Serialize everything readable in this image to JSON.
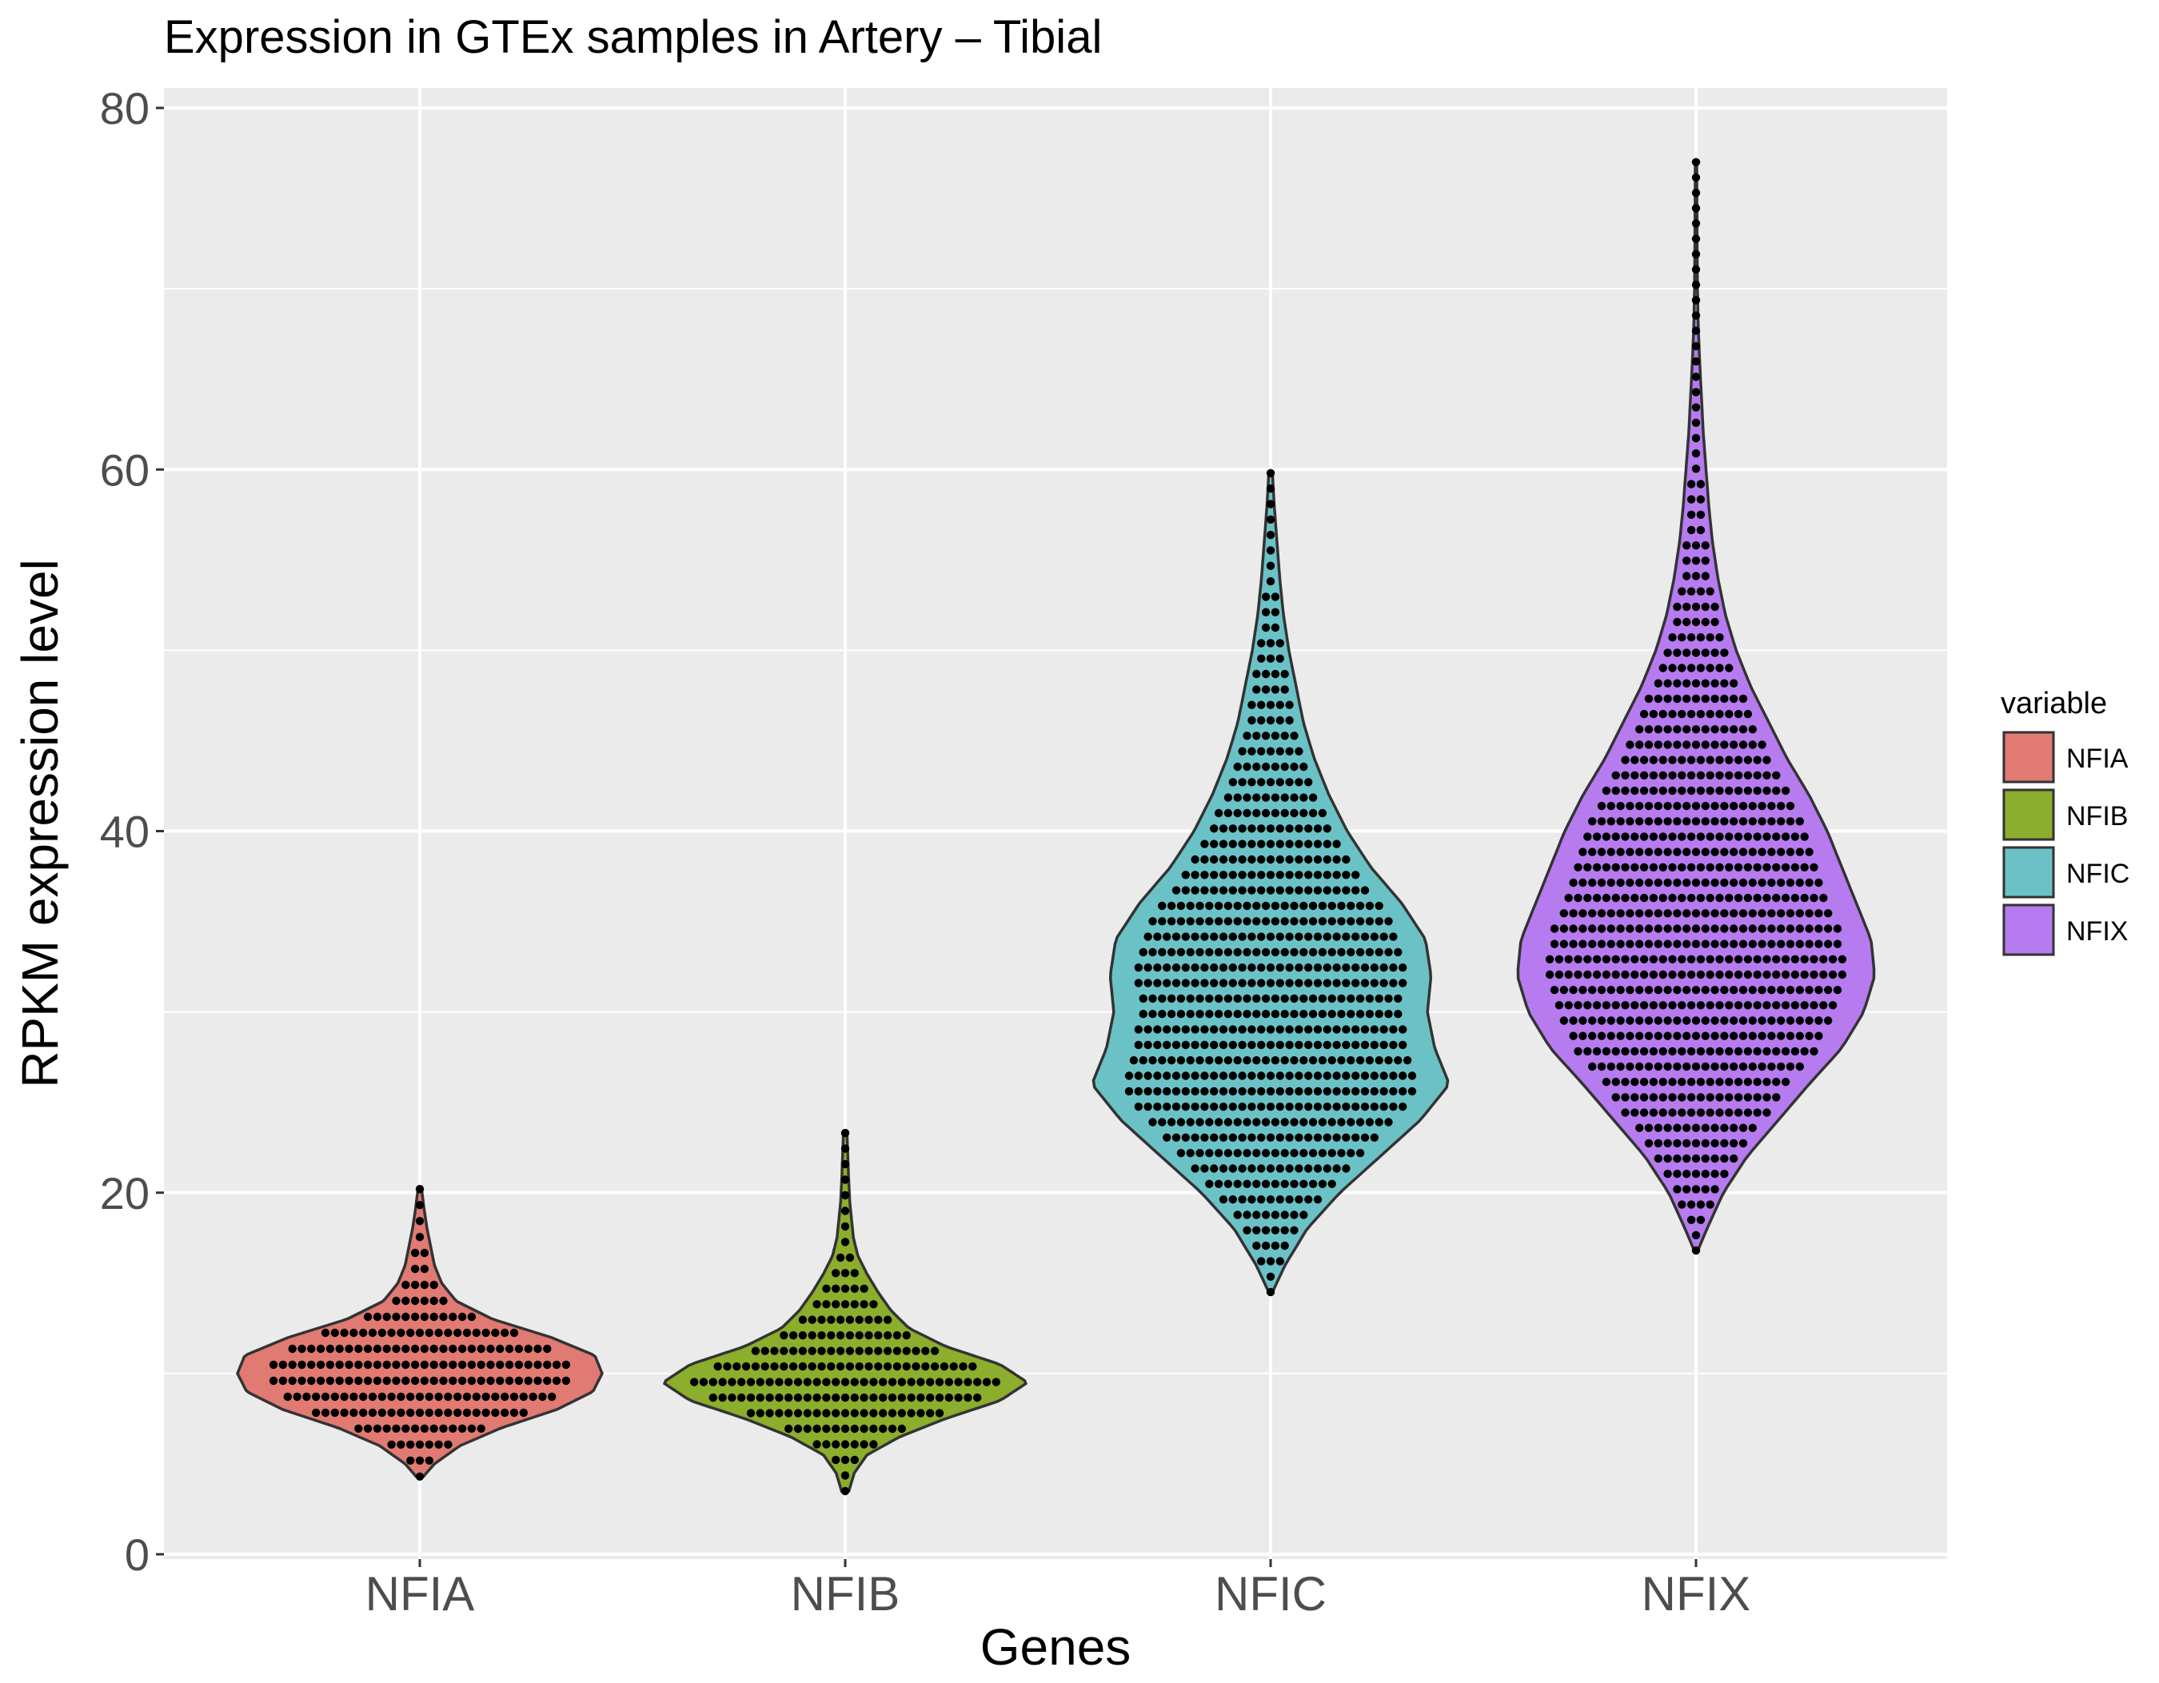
{
  "chart_data": {
    "type": "violin",
    "title": "Expression in GTEx samples in Artery – Tibial",
    "xlabel": "Genes",
    "ylabel": "RPKM expression level",
    "ylim": [
      0,
      80
    ],
    "y_ticks": [
      0,
      20,
      40,
      60,
      80
    ],
    "grid": true,
    "legend_position": "right",
    "legend_title": "variable",
    "categories": [
      "NFIA",
      "NFIB",
      "NFIC",
      "NFIX"
    ],
    "series": [
      {
        "name": "NFIA",
        "color": "#E07A72",
        "min": 4.3,
        "max": 20.2,
        "median": 10.0,
        "density": [
          [
            4.3,
            0.02
          ],
          [
            5.0,
            0.08
          ],
          [
            6.0,
            0.22
          ],
          [
            7.0,
            0.45
          ],
          [
            8.0,
            0.75
          ],
          [
            9.0,
            0.95
          ],
          [
            10.0,
            1.0
          ],
          [
            11.0,
            0.96
          ],
          [
            12.0,
            0.72
          ],
          [
            13.0,
            0.4
          ],
          [
            14.0,
            0.2
          ],
          [
            15.0,
            0.12
          ],
          [
            16.0,
            0.08
          ],
          [
            17.0,
            0.06
          ],
          [
            18.0,
            0.04
          ],
          [
            19.0,
            0.025
          ],
          [
            20.2,
            0.01
          ]
        ]
      },
      {
        "name": "NFIB",
        "color": "#8BAE2C",
        "min": 3.5,
        "max": 23.3,
        "median": 9.5,
        "density": [
          [
            3.5,
            0.02
          ],
          [
            4.5,
            0.05
          ],
          [
            5.5,
            0.12
          ],
          [
            6.5,
            0.3
          ],
          [
            7.5,
            0.55
          ],
          [
            8.5,
            0.85
          ],
          [
            9.5,
            1.0
          ],
          [
            10.5,
            0.85
          ],
          [
            11.5,
            0.55
          ],
          [
            12.5,
            0.35
          ],
          [
            13.5,
            0.25
          ],
          [
            14.5,
            0.18
          ],
          [
            15.5,
            0.12
          ],
          [
            16.5,
            0.07
          ],
          [
            17.5,
            0.045
          ],
          [
            18.5,
            0.035
          ],
          [
            19.5,
            0.025
          ],
          [
            21.0,
            0.018
          ],
          [
            23.3,
            0.01
          ]
        ]
      },
      {
        "name": "NFIC",
        "color": "#6BC2C6",
        "min": 14.5,
        "max": 59.8,
        "median": 30.0,
        "density": [
          [
            14.5,
            0.01
          ],
          [
            16.0,
            0.08
          ],
          [
            18.0,
            0.2
          ],
          [
            20.0,
            0.38
          ],
          [
            22.0,
            0.6
          ],
          [
            24.0,
            0.82
          ],
          [
            26.0,
            0.98
          ],
          [
            28.0,
            0.9
          ],
          [
            30.0,
            0.86
          ],
          [
            32.0,
            0.88
          ],
          [
            34.0,
            0.85
          ],
          [
            36.0,
            0.72
          ],
          [
            38.0,
            0.55
          ],
          [
            40.0,
            0.42
          ],
          [
            42.0,
            0.32
          ],
          [
            44.0,
            0.24
          ],
          [
            46.0,
            0.18
          ],
          [
            48.0,
            0.14
          ],
          [
            50.0,
            0.1
          ],
          [
            52.0,
            0.07
          ],
          [
            54.0,
            0.05
          ],
          [
            56.0,
            0.035
          ],
          [
            58.0,
            0.02
          ],
          [
            59.8,
            0.01
          ]
        ]
      },
      {
        "name": "NFIX",
        "color": "#B57BEF",
        "min": 16.8,
        "max": 77.0,
        "median": 35.0,
        "density": [
          [
            16.8,
            0.01
          ],
          [
            18.0,
            0.06
          ],
          [
            20.0,
            0.15
          ],
          [
            22.0,
            0.28
          ],
          [
            24.0,
            0.45
          ],
          [
            26.0,
            0.62
          ],
          [
            28.0,
            0.8
          ],
          [
            30.0,
            0.92
          ],
          [
            32.0,
            0.98
          ],
          [
            34.0,
            0.96
          ],
          [
            36.0,
            0.88
          ],
          [
            38.0,
            0.8
          ],
          [
            40.0,
            0.72
          ],
          [
            42.0,
            0.62
          ],
          [
            44.0,
            0.5
          ],
          [
            46.0,
            0.4
          ],
          [
            48.0,
            0.3
          ],
          [
            50.0,
            0.22
          ],
          [
            52.0,
            0.16
          ],
          [
            54.0,
            0.12
          ],
          [
            56.0,
            0.09
          ],
          [
            58.0,
            0.07
          ],
          [
            60.0,
            0.055
          ],
          [
            62.0,
            0.04
          ],
          [
            64.0,
            0.03
          ],
          [
            66.0,
            0.02
          ],
          [
            68.0,
            0.012
          ],
          [
            70.0,
            0.008
          ],
          [
            73.0,
            0.006
          ],
          [
            77.0,
            0.004
          ]
        ]
      }
    ]
  }
}
